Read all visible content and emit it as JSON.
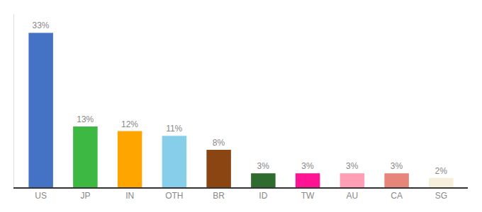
{
  "chart_data": {
    "type": "bar",
    "categories": [
      "US",
      "JP",
      "IN",
      "OTH",
      "BR",
      "ID",
      "TW",
      "AU",
      "CA",
      "SG"
    ],
    "values": [
      33,
      13,
      12,
      11,
      8,
      3,
      3,
      3,
      3,
      2
    ],
    "value_labels": [
      "33%",
      "13%",
      "12%",
      "11%",
      "8%",
      "3%",
      "3%",
      "3%",
      "3%",
      "2%"
    ],
    "colors": [
      "#4472C4",
      "#3CB843",
      "#FFA500",
      "#87CEEB",
      "#8B4513",
      "#2E6B2E",
      "#FF1493",
      "#FF9EB5",
      "#E8857A",
      "#F5F0DC"
    ],
    "ylim": [
      0,
      37
    ],
    "data_labels": true,
    "tick_labels": "x",
    "grid": false
  }
}
